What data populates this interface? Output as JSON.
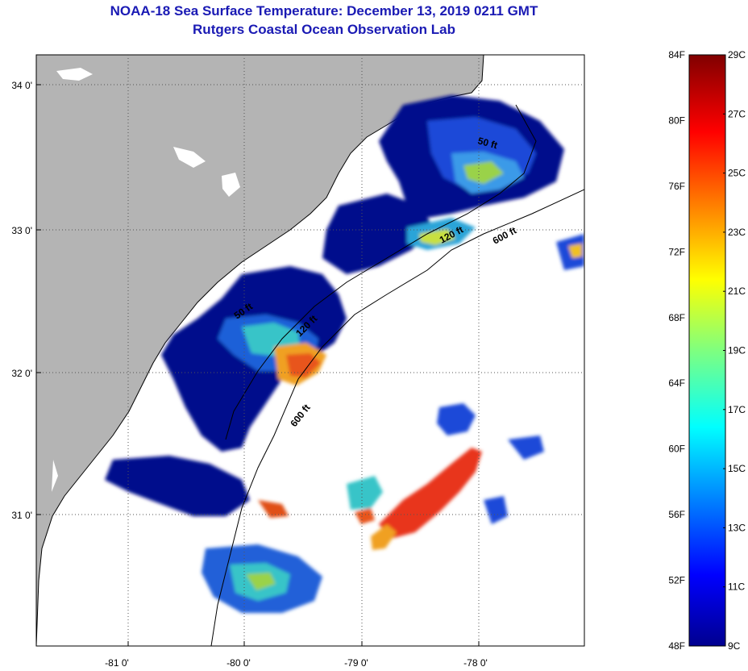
{
  "header": {
    "title": "NOAA-18 Sea Surface Temperature:  December 13, 2019 0211 GMT",
    "subtitle": "Rutgers Coastal Ocean Observation Lab"
  },
  "map": {
    "lat_ticks": [
      "34 0'",
      "33 0'",
      "32 0'",
      "31 0'"
    ],
    "lon_ticks": [
      "-81 0'",
      "-80 0'",
      "-79 0'",
      "-78 0'"
    ],
    "isobath_labels": [
      "50 ft",
      "120 ft",
      "600 ft",
      "50 ft",
      "120 ft",
      "600 ft"
    ],
    "colors": {
      "land": "#b4b4b4",
      "ocean": "#ffffff",
      "cold": "#000090",
      "warm": "#e8341a"
    }
  },
  "colorbar": {
    "fahrenheit": [
      "84F",
      "80F",
      "76F",
      "72F",
      "68F",
      "64F",
      "60F",
      "56F",
      "52F",
      "48F"
    ],
    "celsius": [
      "29C",
      "27C",
      "25C",
      "23C",
      "21C",
      "19C",
      "17C",
      "15C",
      "13C",
      "11C",
      "9C"
    ],
    "range_c": [
      9,
      29
    ],
    "range_f": [
      48,
      84
    ]
  }
}
